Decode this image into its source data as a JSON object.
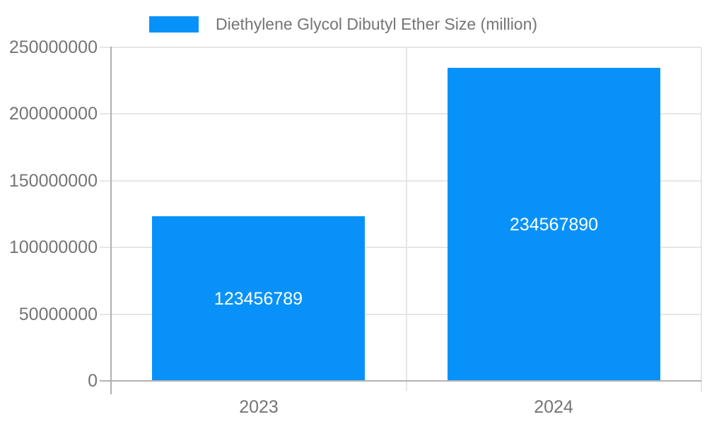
{
  "chart_data": {
    "type": "bar",
    "title": "Diethylene Glycol Dibutyl Ether Size (million)",
    "categories": [
      "2023",
      "2024"
    ],
    "series": [
      {
        "name": "Diethylene Glycol Dibutyl Ether Size (million)",
        "values": [
          123456789,
          234567890
        ]
      }
    ],
    "value_labels": [
      "123456789",
      "234567890"
    ],
    "xlabel": "",
    "ylabel": "",
    "ylim": [
      0,
      250000000
    ],
    "ytick_step": 50000000,
    "yticks": [
      0,
      50000000,
      100000000,
      150000000,
      200000000,
      250000000
    ],
    "ytick_labels": [
      "0",
      "50000000",
      "100000000",
      "150000000",
      "200000000",
      "250000000"
    ],
    "grid": true,
    "legend_position": "top",
    "colors": {
      "bar": "#0892f9",
      "value_label_text": "#ffffff",
      "axis_text": "#757575",
      "gridline": "#e6e6e6",
      "baseline": "#b3b3b3",
      "axis_line": "#b0b0b0",
      "background": "#ffffff"
    }
  }
}
